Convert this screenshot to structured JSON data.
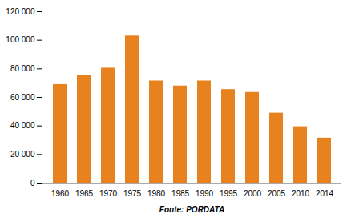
{
  "chart_data": {
    "type": "bar",
    "categories": [
      "1960",
      "1965",
      "1970",
      "1975",
      "1980",
      "1985",
      "1990",
      "1995",
      "2000",
      "2005",
      "2010",
      "2014"
    ],
    "values": [
      69000,
      75500,
      80500,
      103000,
      71500,
      68000,
      71500,
      65500,
      63500,
      49000,
      39500,
      31500
    ],
    "color": "#E8821E",
    "xlabel": "Fonte: PORDATA",
    "ylim": [
      0,
      120000
    ],
    "yticks": [
      0,
      {
        "value": 20000,
        "label": "20 000"
      },
      {
        "value": 40000,
        "label": "40 000"
      },
      {
        "value": 60000,
        "label": "60 000"
      },
      {
        "value": 80000,
        "label": "80 000"
      },
      {
        "value": 100000,
        "label": "100 000"
      },
      {
        "value": 120000,
        "label": "120 000"
      }
    ],
    "grid": false
  }
}
